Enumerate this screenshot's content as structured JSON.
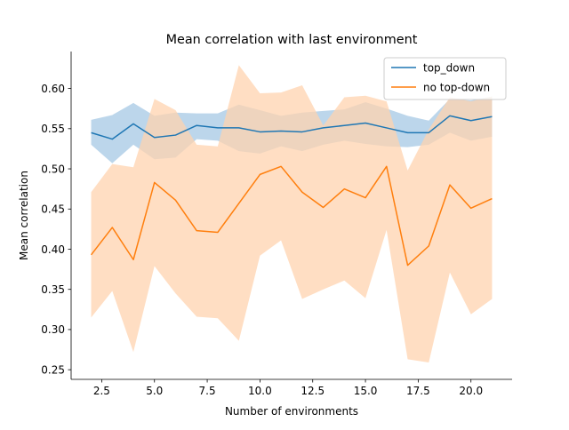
{
  "chart_data": {
    "type": "line",
    "title": "Mean correlation with last environment",
    "xlabel": "Number of environments",
    "ylabel": "Mean correlation",
    "xlim": [
      1.05,
      21.95
    ],
    "ylim": [
      0.238,
      0.646
    ],
    "x_ticks": [
      2.5,
      5.0,
      7.5,
      10.0,
      12.5,
      15.0,
      17.5,
      20.0
    ],
    "x_tick_labels": [
      "2.5",
      "5.0",
      "7.5",
      "10.0",
      "12.5",
      "15.0",
      "17.5",
      "20.0"
    ],
    "y_ticks": [
      0.25,
      0.3,
      0.35,
      0.4,
      0.45,
      0.5,
      0.55,
      0.6
    ],
    "y_tick_labels": [
      "0.25",
      "0.30",
      "0.35",
      "0.40",
      "0.45",
      "0.50",
      "0.55",
      "0.60"
    ],
    "grid": false,
    "legend_position": "top-right",
    "x": [
      2,
      3,
      4,
      5,
      6,
      7,
      8,
      9,
      10,
      11,
      12,
      13,
      14,
      15,
      16,
      17,
      18,
      19,
      20,
      21
    ],
    "series": [
      {
        "name": "top_down",
        "color": "#1f77b4",
        "band_color": "#a6c8e4",
        "values": [
          0.545,
          0.537,
          0.556,
          0.539,
          0.542,
          0.554,
          0.551,
          0.551,
          0.546,
          0.547,
          0.546,
          0.551,
          0.554,
          0.557,
          0.551,
          0.545,
          0.545,
          0.566,
          0.56,
          0.565
        ],
        "lower": [
          0.53,
          0.507,
          0.53,
          0.512,
          0.514,
          0.537,
          0.535,
          0.522,
          0.519,
          0.528,
          0.522,
          0.53,
          0.535,
          0.531,
          0.528,
          0.527,
          0.53,
          0.545,
          0.535,
          0.54
        ],
        "upper": [
          0.561,
          0.567,
          0.582,
          0.566,
          0.57,
          0.569,
          0.569,
          0.58,
          0.573,
          0.566,
          0.57,
          0.572,
          0.574,
          0.583,
          0.575,
          0.566,
          0.56,
          0.587,
          0.585,
          0.59
        ]
      },
      {
        "name": "no top-down",
        "color": "#ff7f0e",
        "band_color": "#ffd3af",
        "values": [
          0.393,
          0.427,
          0.387,
          0.483,
          0.461,
          0.423,
          0.421,
          0.457,
          0.493,
          0.503,
          0.471,
          0.452,
          0.475,
          0.464,
          0.503,
          0.38,
          0.404,
          0.48,
          0.451,
          0.463
        ],
        "lower": [
          0.315,
          0.348,
          0.272,
          0.379,
          0.345,
          0.316,
          0.314,
          0.286,
          0.392,
          0.411,
          0.338,
          0.35,
          0.361,
          0.339,
          0.424,
          0.263,
          0.259,
          0.371,
          0.319,
          0.338
        ],
        "upper": [
          0.471,
          0.506,
          0.502,
          0.587,
          0.573,
          0.53,
          0.528,
          0.629,
          0.594,
          0.595,
          0.604,
          0.554,
          0.589,
          0.591,
          0.584,
          0.498,
          0.549,
          0.589,
          0.584,
          0.59
        ]
      }
    ]
  }
}
